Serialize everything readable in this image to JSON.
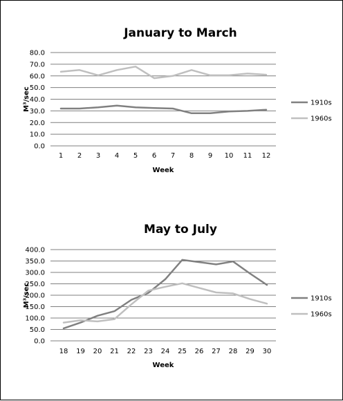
{
  "chart_data": [
    {
      "type": "line",
      "title": "January to March",
      "xlabel": "Week",
      "ylabel": "M³/sec",
      "categories": [
        "1",
        "2",
        "3",
        "4",
        "5",
        "6",
        "7",
        "8",
        "9",
        "10",
        "11",
        "12"
      ],
      "ylim": [
        0,
        80
      ],
      "ytick_labels": [
        "0.0",
        "10.0",
        "20.0",
        "30.0",
        "40.0",
        "50.0",
        "60.0",
        "70.0",
        "80.0"
      ],
      "grid": true,
      "legend_position": "right",
      "series": [
        {
          "name": "1910s",
          "color": "#808080",
          "values": [
            32,
            32,
            33,
            34.5,
            33,
            32.5,
            32,
            28,
            28,
            29.5,
            30,
            31
          ]
        },
        {
          "name": "1960s",
          "color": "#bfbfbf",
          "values": [
            63.5,
            65,
            60.5,
            65,
            68,
            58,
            60,
            65,
            60.5,
            60.5,
            62,
            61
          ]
        }
      ]
    },
    {
      "type": "line",
      "title": "May to July",
      "xlabel": "Week",
      "ylabel": "M³/sec",
      "categories": [
        "18",
        "19",
        "20",
        "21",
        "22",
        "23",
        "24",
        "25",
        "26",
        "27",
        "28",
        "29",
        "30"
      ],
      "ylim": [
        0,
        400
      ],
      "ytick_labels": [
        "0.0",
        "50.0",
        "100.0",
        "150.0",
        "200.0",
        "250.0",
        "300.0",
        "350.0",
        "400.0"
      ],
      "grid": true,
      "legend_position": "right",
      "series": [
        {
          "name": "1910s",
          "color": "#808080",
          "values": [
            55,
            80,
            110,
            130,
            180,
            210,
            270,
            355,
            345,
            335,
            348,
            295,
            245
          ]
        },
        {
          "name": "1960s",
          "color": "#bfbfbf",
          "values": [
            80,
            90,
            85,
            95,
            160,
            220,
            237,
            252,
            232,
            212,
            208,
            183,
            163
          ]
        }
      ]
    }
  ]
}
